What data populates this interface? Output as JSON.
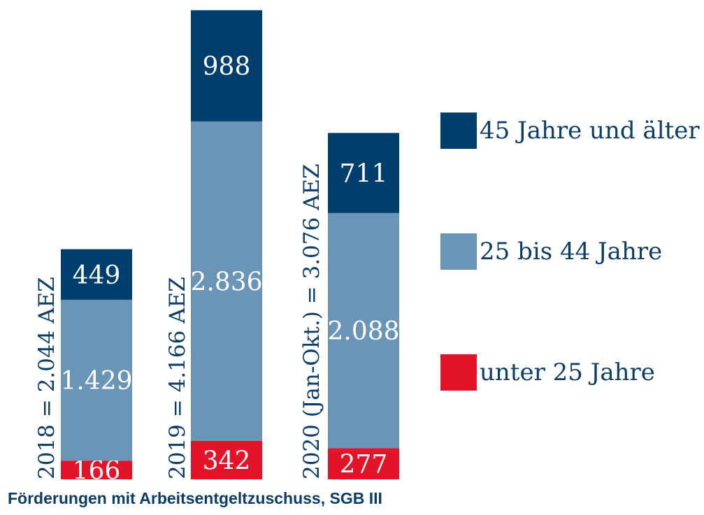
{
  "chart_data": {
    "type": "bar",
    "stacked": true,
    "categories": [
      "2018 = 2.044 AEZ",
      "2019 =  4.166 AEZ",
      "2020 (Jan-Okt.) = 3.076 AEZ"
    ],
    "series": [
      {
        "name": "unter 25 Jahre",
        "color": "#e31329",
        "values": [
          166,
          342,
          277
        ],
        "labels": [
          "166",
          "342",
          "277"
        ]
      },
      {
        "name": "25 bis 44 Jahre",
        "color": "#6b95b7",
        "values": [
          1429,
          2836,
          2088
        ],
        "labels": [
          "1.429",
          "2.836",
          "2.088"
        ]
      },
      {
        "name": "45 Jahre und älter",
        "color": "#003f6d",
        "values": [
          449,
          988,
          711
        ],
        "labels": [
          "449",
          "988",
          "711"
        ]
      }
    ],
    "legend": {
      "placement": "right",
      "order": [
        "45 Jahre und älter",
        "25 bis 44 Jahre",
        "unter 25 Jahre"
      ]
    }
  },
  "caption": "Förderungen mit Arbeitsentgeltzuschuss, SGB III"
}
